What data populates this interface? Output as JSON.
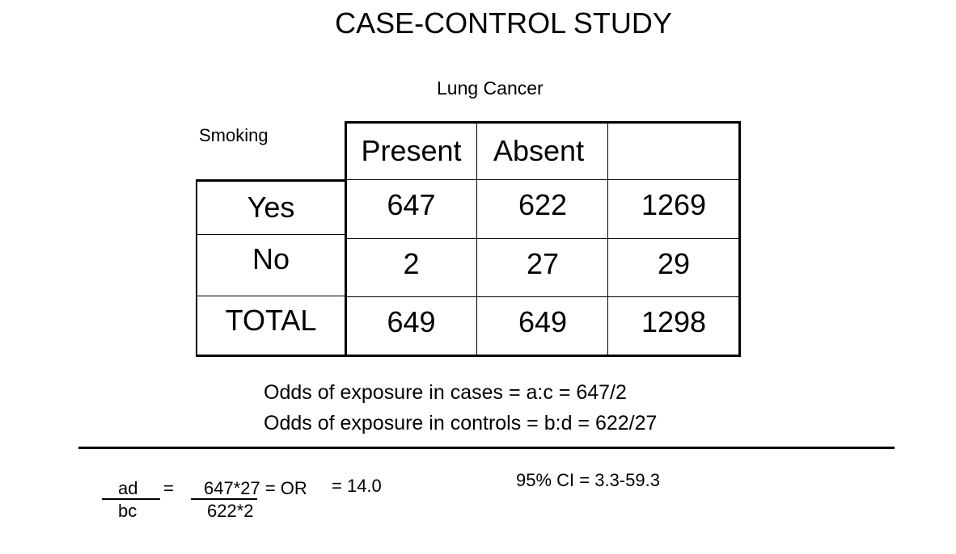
{
  "title": "CASE-CONTROL STUDY",
  "column_group_label": "Lung Cancer",
  "row_group_label": "Smoking",
  "table": {
    "columns": [
      "Present",
      "Absent",
      ""
    ],
    "rows": [
      {
        "label": "Yes",
        "values": [
          "647",
          "622",
          "1269"
        ]
      },
      {
        "label": "No",
        "values": [
          "2",
          "27",
          "29"
        ]
      },
      {
        "label": "TOTAL",
        "values": [
          "649",
          "649",
          "1298"
        ]
      }
    ]
  },
  "odds_lines": [
    "Odds of exposure in cases = a:c = 647/2",
    "Odds of exposure in controls = b:d = 622/27"
  ],
  "formula": {
    "num1": "ad",
    "den1": "bc",
    "eq1": "=",
    "num2": "647*27 = OR",
    "den2": "622*2",
    "result": "= 14.0",
    "ci": "95% CI = 3.3-59.3"
  }
}
